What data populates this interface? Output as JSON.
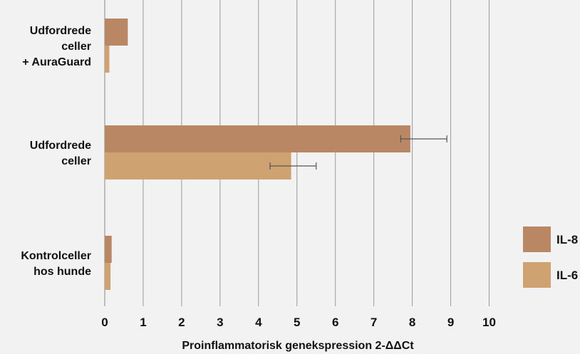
{
  "chart_data": {
    "type": "bar",
    "orientation": "horizontal",
    "categories": [
      [
        "Udfordrede",
        "celler",
        "+ AuraGuard"
      ],
      [
        "Udfordrede",
        "celler"
      ],
      [
        "Kontrolceller",
        "hos hunde"
      ]
    ],
    "series": [
      {
        "name": "IL-8",
        "color": "#b98764",
        "values": [
          0.6,
          7.95,
          0.18
        ],
        "errors": [
          null,
          [
            7.7,
            8.9
          ],
          null
        ]
      },
      {
        "name": "IL-6",
        "color": "#cfa272",
        "values": [
          0.12,
          4.85,
          0.15
        ],
        "errors": [
          null,
          [
            4.3,
            5.5
          ],
          null
        ]
      }
    ],
    "xlabel": "Proinflammatorisk genekspression 2-ΔΔCt",
    "xlim": [
      0,
      10
    ],
    "xticks": [
      0,
      1,
      2,
      3,
      4,
      5,
      6,
      7,
      8,
      9,
      10
    ],
    "grid": "vertical",
    "legend_position": "right"
  }
}
